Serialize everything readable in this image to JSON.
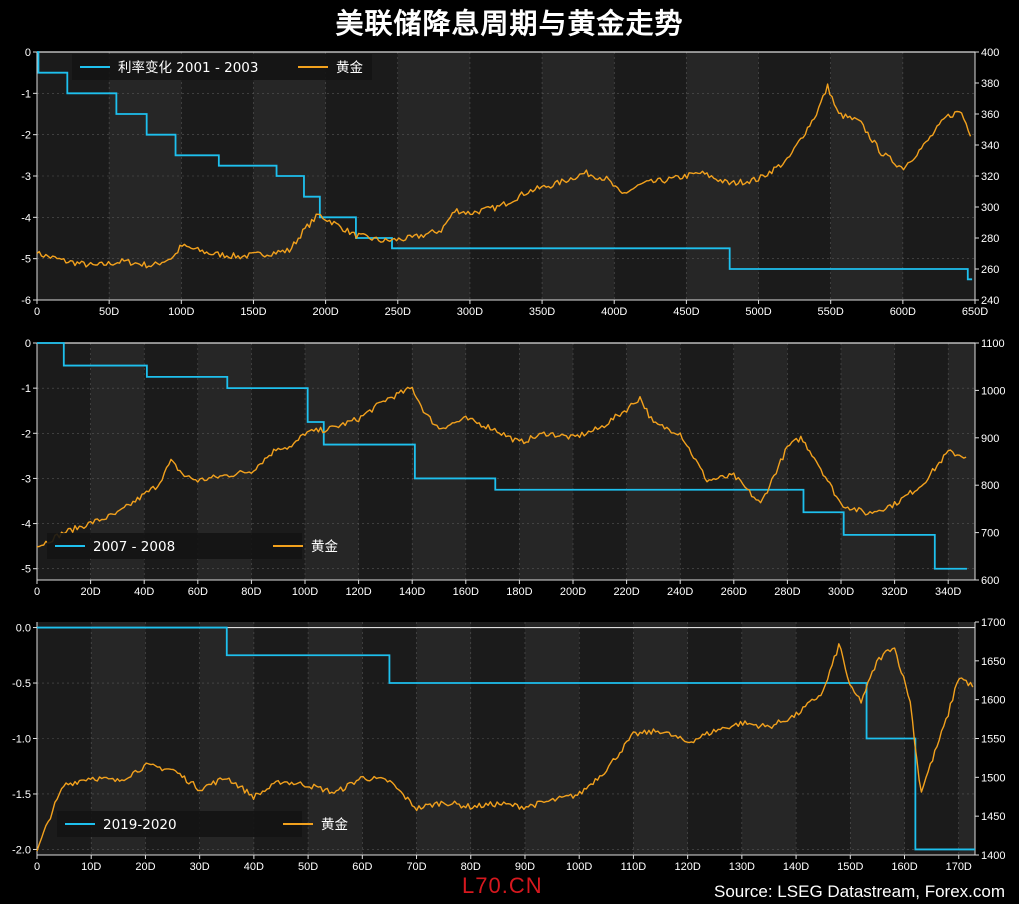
{
  "title": "美联储降息周期与黄金走势",
  "source": "Source: LSEG Datastream, Forex.com",
  "watermark": "L70.CN",
  "colors": {
    "background": "#000000",
    "plot": "#1b1b1b",
    "stripe": "#262626",
    "rate": "#1ec0ee",
    "gold": "#f2a11d",
    "zero_line": "#dddddd"
  },
  "chart_data": [
    {
      "type": "line",
      "x_unit": "days",
      "xlim": [
        0,
        650
      ],
      "xticks": [
        0,
        50,
        100,
        150,
        200,
        250,
        300,
        350,
        400,
        450,
        500,
        550,
        600,
        650
      ],
      "xtick_labels": [
        "0",
        "50D",
        "100D",
        "150D",
        "200D",
        "250D",
        "300D",
        "350D",
        "400D",
        "450D",
        "500D",
        "550D",
        "600D",
        "650D"
      ],
      "ylim_left": [
        -6,
        0
      ],
      "yticks_left": [
        0,
        -1,
        -2,
        -3,
        -4,
        -5,
        -6
      ],
      "ytick_labels_left": [
        "0",
        "-1",
        "-2",
        "-3",
        "-4",
        "-5",
        "-6"
      ],
      "ylim_right": [
        240,
        400
      ],
      "yticks_right": [
        240,
        260,
        280,
        300,
        320,
        340,
        360,
        380,
        400
      ],
      "legend_position": "top-left",
      "grid": true,
      "series": [
        {
          "name": "利率变化 2001 - 2003",
          "axis": "left",
          "style": "step",
          "points": [
            [
              0,
              0
            ],
            [
              1,
              -0.5
            ],
            [
              21,
              -1.0
            ],
            [
              55,
              -1.5
            ],
            [
              76,
              -2.0
            ],
            [
              96,
              -2.5
            ],
            [
              126,
              -2.75
            ],
            [
              166,
              -3.0
            ],
            [
              185,
              -3.5
            ],
            [
              196,
              -4.0
            ],
            [
              221,
              -4.5
            ],
            [
              246,
              -4.75
            ],
            [
              480,
              -5.25
            ],
            [
              645,
              -5.5
            ],
            [
              648,
              -5.5
            ]
          ]
        },
        {
          "name": "黄金",
          "axis": "right",
          "points": [
            [
              0,
              270
            ],
            [
              20,
              265
            ],
            [
              40,
              262
            ],
            [
              60,
              265
            ],
            [
              80,
              262
            ],
            [
              95,
              268
            ],
            [
              100,
              275
            ],
            [
              120,
              270
            ],
            [
              140,
              268
            ],
            [
              160,
              270
            ],
            [
              175,
              272
            ],
            [
              185,
              285
            ],
            [
              195,
              295
            ],
            [
              205,
              290
            ],
            [
              220,
              282
            ],
            [
              240,
              278
            ],
            [
              260,
              280
            ],
            [
              280,
              285
            ],
            [
              290,
              298
            ],
            [
              300,
              296
            ],
            [
              320,
              300
            ],
            [
              340,
              310
            ],
            [
              360,
              315
            ],
            [
              380,
              322
            ],
            [
              395,
              318
            ],
            [
              405,
              308
            ],
            [
              420,
              315
            ],
            [
              440,
              318
            ],
            [
              460,
              322
            ],
            [
              480,
              315
            ],
            [
              500,
              318
            ],
            [
              520,
              330
            ],
            [
              530,
              345
            ],
            [
              540,
              360
            ],
            [
              548,
              378
            ],
            [
              555,
              360
            ],
            [
              570,
              355
            ],
            [
              585,
              335
            ],
            [
              600,
              325
            ],
            [
              615,
              340
            ],
            [
              630,
              358
            ],
            [
              640,
              362
            ],
            [
              648,
              345
            ]
          ]
        }
      ]
    },
    {
      "type": "line",
      "x_unit": "days",
      "xlim": [
        0,
        350
      ],
      "xticks": [
        0,
        20,
        40,
        60,
        80,
        100,
        120,
        140,
        160,
        180,
        200,
        220,
        240,
        260,
        280,
        300,
        320,
        340
      ],
      "xtick_labels": [
        "0",
        "20D",
        "40D",
        "60D",
        "80D",
        "100D",
        "120D",
        "140D",
        "160D",
        "180D",
        "200D",
        "220D",
        "240D",
        "260D",
        "280D",
        "300D",
        "320D",
        "340D"
      ],
      "ylim_left": [
        -5.25,
        0
      ],
      "yticks_left": [
        0,
        -1,
        -2,
        -3,
        -4,
        -5
      ],
      "ytick_labels_left": [
        "0",
        "-1",
        "-2",
        "-3",
        "-4",
        "-5"
      ],
      "ylim_right": [
        600,
        1100
      ],
      "yticks_right": [
        600,
        700,
        800,
        900,
        1000,
        1100
      ],
      "legend_position": "bottom-left",
      "grid": true,
      "series": [
        {
          "name": "2007 - 2008",
          "axis": "left",
          "style": "step",
          "points": [
            [
              0,
              0
            ],
            [
              10,
              -0.5
            ],
            [
              41,
              -0.75
            ],
            [
              71,
              -1.0
            ],
            [
              101,
              -1.75
            ],
            [
              107,
              -2.25
            ],
            [
              141,
              -3.0
            ],
            [
              171,
              -3.25
            ],
            [
              286,
              -3.75
            ],
            [
              301,
              -4.25
            ],
            [
              335,
              -5.0
            ],
            [
              347,
              -5.0
            ]
          ]
        },
        {
          "name": "黄金",
          "axis": "right",
          "points": [
            [
              0,
              670
            ],
            [
              10,
              700
            ],
            [
              20,
              720
            ],
            [
              30,
              740
            ],
            [
              40,
              780
            ],
            [
              45,
              800
            ],
            [
              50,
              850
            ],
            [
              55,
              820
            ],
            [
              60,
              810
            ],
            [
              70,
              820
            ],
            [
              80,
              830
            ],
            [
              90,
              880
            ],
            [
              95,
              880
            ],
            [
              100,
              910
            ],
            [
              110,
              920
            ],
            [
              120,
              940
            ],
            [
              130,
              980
            ],
            [
              140,
              1005
            ],
            [
              145,
              950
            ],
            [
              150,
              920
            ],
            [
              160,
              940
            ],
            [
              170,
              920
            ],
            [
              180,
              890
            ],
            [
              190,
              910
            ],
            [
              200,
              900
            ],
            [
              210,
              920
            ],
            [
              220,
              960
            ],
            [
              225,
              985
            ],
            [
              230,
              930
            ],
            [
              240,
              910
            ],
            [
              250,
              810
            ],
            [
              260,
              820
            ],
            [
              270,
              760
            ],
            [
              280,
              880
            ],
            [
              285,
              900
            ],
            [
              290,
              860
            ],
            [
              300,
              760
            ],
            [
              310,
              740
            ],
            [
              320,
              760
            ],
            [
              330,
              800
            ],
            [
              340,
              870
            ],
            [
              347,
              860
            ]
          ]
        }
      ]
    },
    {
      "type": "line",
      "x_unit": "days",
      "xlim": [
        0,
        173
      ],
      "xticks": [
        0,
        10,
        20,
        30,
        40,
        50,
        60,
        70,
        80,
        90,
        100,
        110,
        120,
        130,
        140,
        150,
        160,
        170
      ],
      "xtick_labels": [
        "0",
        "10D",
        "20D",
        "30D",
        "40D",
        "50D",
        "60D",
        "70D",
        "80D",
        "90D",
        "100D",
        "110D",
        "120D",
        "130D",
        "140D",
        "150D",
        "160D",
        "170D"
      ],
      "ylim_left": [
        -2.05,
        0.05
      ],
      "yticks_left": [
        0.0,
        -0.5,
        -1.0,
        -1.5,
        -2.0
      ],
      "ytick_labels_left": [
        "0.0",
        "-0.5",
        "-1.0",
        "-1.5",
        "-2.0"
      ],
      "ylim_right": [
        1400,
        1700
      ],
      "yticks_right": [
        1400,
        1450,
        1500,
        1550,
        1600,
        1650,
        1700
      ],
      "legend_position": "bottom-left",
      "grid": true,
      "series": [
        {
          "name": "2019-2020",
          "axis": "left",
          "style": "step",
          "points": [
            [
              0,
              0
            ],
            [
              35,
              -0.25
            ],
            [
              65,
              -0.5
            ],
            [
              153,
              -1.0
            ],
            [
              162,
              -2.0
            ],
            [
              173,
              -2.0
            ]
          ]
        },
        {
          "name": "黄金",
          "axis": "right",
          "points": [
            [
              0,
              1405
            ],
            [
              3,
              1460
            ],
            [
              5,
              1490
            ],
            [
              10,
              1500
            ],
            [
              15,
              1495
            ],
            [
              20,
              1515
            ],
            [
              25,
              1510
            ],
            [
              30,
              1485
            ],
            [
              35,
              1500
            ],
            [
              40,
              1475
            ],
            [
              45,
              1495
            ],
            [
              50,
              1490
            ],
            [
              55,
              1480
            ],
            [
              60,
              1500
            ],
            [
              65,
              1495
            ],
            [
              70,
              1460
            ],
            [
              75,
              1468
            ],
            [
              80,
              1462
            ],
            [
              85,
              1466
            ],
            [
              90,
              1462
            ],
            [
              95,
              1470
            ],
            [
              100,
              1478
            ],
            [
              105,
              1510
            ],
            [
              110,
              1555
            ],
            [
              115,
              1560
            ],
            [
              120,
              1545
            ],
            [
              125,
              1560
            ],
            [
              130,
              1570
            ],
            [
              135,
              1565
            ],
            [
              140,
              1580
            ],
            [
              145,
              1610
            ],
            [
              148,
              1672
            ],
            [
              150,
              1615
            ],
            [
              152,
              1598
            ],
            [
              155,
              1650
            ],
            [
              158,
              1670
            ],
            [
              161,
              1600
            ],
            [
              163,
              1480
            ],
            [
              165,
              1520
            ],
            [
              168,
              1580
            ],
            [
              170,
              1630
            ],
            [
              173,
              1615
            ]
          ]
        }
      ]
    }
  ]
}
